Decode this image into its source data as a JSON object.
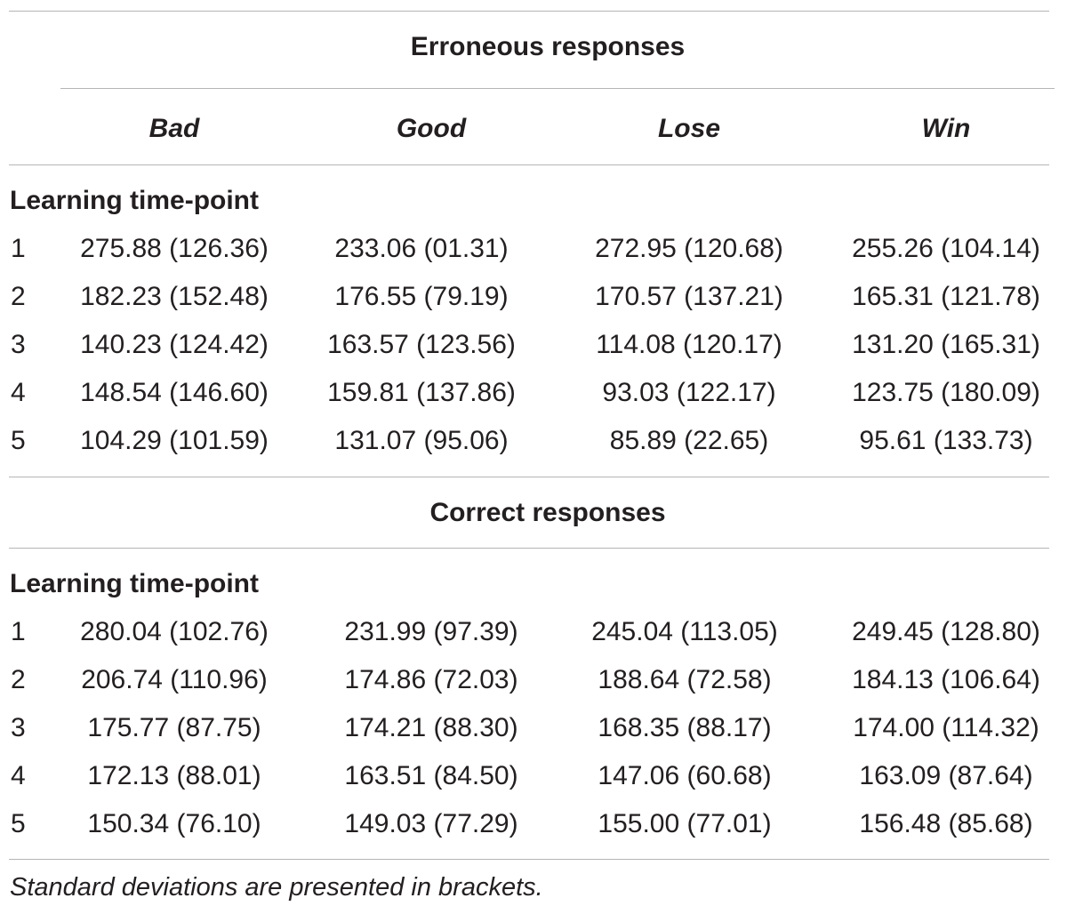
{
  "table": {
    "columns": [
      "Bad",
      "Good",
      "Lose",
      "Win"
    ],
    "sections": [
      {
        "title": "Erroneous responses",
        "group_label": "Learning time-point",
        "rows": [
          {
            "label": "1",
            "cells": [
              "275.88 (126.36)",
              "233.06 (01.31)",
              "272.95 (120.68)",
              "255.26 (104.14)"
            ]
          },
          {
            "label": "2",
            "cells": [
              "182.23 (152.48)",
              "176.55 (79.19)",
              "170.57 (137.21)",
              "165.31 (121.78)"
            ]
          },
          {
            "label": "3",
            "cells": [
              "140.23 (124.42)",
              "163.57 (123.56)",
              "114.08 (120.17)",
              "131.20 (165.31)"
            ]
          },
          {
            "label": "4",
            "cells": [
              "148.54 (146.60)",
              "159.81 (137.86)",
              "93.03 (122.17)",
              "123.75 (180.09)"
            ]
          },
          {
            "label": "5",
            "cells": [
              "104.29 (101.59)",
              "131.07 (95.06)",
              "85.89 (22.65)",
              "95.61 (133.73)"
            ]
          }
        ]
      },
      {
        "title": "Correct responses",
        "group_label": "Learning time-point",
        "rows": [
          {
            "label": "1",
            "cells": [
              "280.04 (102.76)",
              "231.99 (97.39)",
              "245.04 (113.05)",
              "249.45 (128.80)"
            ]
          },
          {
            "label": "2",
            "cells": [
              "206.74 (110.96)",
              "174.86 (72.03)",
              "188.64 (72.58)",
              "184.13 (106.64)"
            ]
          },
          {
            "label": "3",
            "cells": [
              "175.77 (87.75)",
              "174.21 (88.30)",
              "168.35 (88.17)",
              "174.00 (114.32)"
            ]
          },
          {
            "label": "4",
            "cells": [
              "172.13 (88.01)",
              "163.51 (84.50)",
              "147.06 (60.68)",
              "163.09 (87.64)"
            ]
          },
          {
            "label": "5",
            "cells": [
              "150.34 (76.10)",
              "149.03 (77.29)",
              "155.00 (77.01)",
              "156.48 (85.68)"
            ]
          }
        ]
      }
    ],
    "footnote": "Standard deviations are presented in brackets."
  }
}
